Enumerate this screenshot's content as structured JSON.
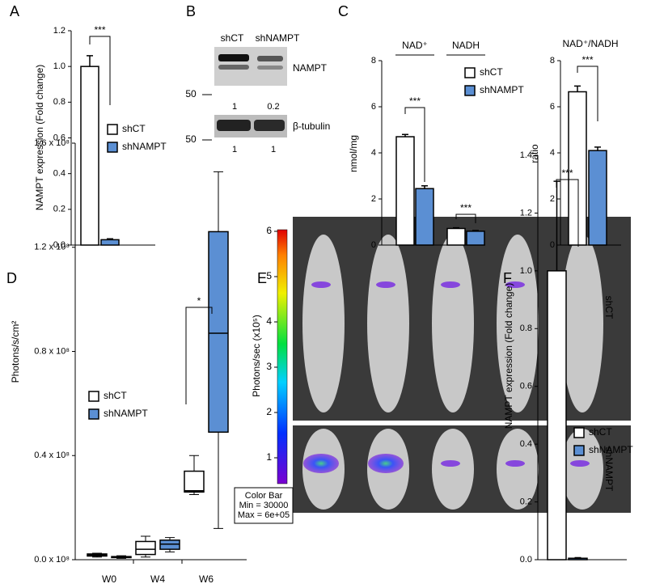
{
  "chart_data": [
    {
      "type": "bar",
      "panel": "A",
      "ylabel": "NAMPT expression (Fold change)",
      "categories": [
        null
      ],
      "series": [
        {
          "name": "shCT",
          "color": "#ffffff",
          "values": [
            1.0
          ],
          "errors": [
            0.06
          ]
        },
        {
          "name": "shNAMPT",
          "color": "#5b8fd3",
          "values": [
            0.03
          ],
          "errors": [
            0.005
          ]
        }
      ],
      "ylim": [
        0,
        1.2
      ],
      "yticks": [
        {
          "value": 0,
          "label": "0.0"
        },
        0.2,
        0.4,
        0.6,
        0.8,
        {
          "value": 1,
          "label": "1.0"
        },
        1.2
      ],
      "annotations": [
        "***"
      ]
    },
    {
      "type": "bar",
      "panel": "C",
      "ylabel": "nmol/mg",
      "categories": [
        "NAD⁺",
        "NADH"
      ],
      "series": [
        {
          "name": "shCT",
          "color": "#ffffff",
          "values": [
            4.7,
            0.72
          ],
          "errors": [
            0.1,
            0.03
          ]
        },
        {
          "name": "shNAMPT",
          "color": "#5b8fd3",
          "values": [
            2.45,
            0.6
          ],
          "errors": [
            0.12,
            0.03
          ]
        }
      ],
      "ylim": [
        0,
        8
      ],
      "yticks": [
        0,
        2,
        4,
        6,
        8
      ],
      "annotations": [
        "***",
        "***"
      ]
    },
    {
      "type": "bar",
      "title": "NAD⁺/NADH",
      "ylabel": "ratio",
      "categories": [
        null
      ],
      "series": [
        {
          "color": "#ffffff",
          "values": [
            6.65
          ],
          "errors": [
            0.25
          ]
        },
        {
          "color": "#5b8fd3",
          "values": [
            4.1
          ],
          "errors": [
            0.15
          ]
        }
      ],
      "ylim": [
        0,
        8
      ],
      "yticks": [
        0,
        2,
        4,
        6,
        8
      ],
      "annotations": [
        "***"
      ]
    },
    {
      "type": "box",
      "panel": "D",
      "ylabel": "Photons/s/cm²",
      "categories": [
        "W0",
        "W4",
        "W6"
      ],
      "series": [
        {
          "name": "shCT",
          "color": "#ffffff",
          "values": [
            {
              "min": 1000000,
              "q1": 1400000,
              "median": 1800000,
              "q3": 2200000,
              "max": 2500000
            },
            {
              "min": 1000000,
              "q1": 2000000,
              "median": 4000000,
              "q3": 7000000,
              "max": 9000000
            },
            {
              "min": 25000000,
              "q1": 26000000,
              "median": 26500000,
              "q3": 34000000,
              "max": 40000000
            }
          ]
        },
        {
          "name": "shNAMPT",
          "color": "#5b8fd3",
          "values": [
            {
              "min": 500000,
              "q1": 800000,
              "median": 1000000,
              "q3": 1200000,
              "max": 1500000
            },
            {
              "min": 3000000,
              "q1": 4000000,
              "median": 6000000,
              "q3": 7500000,
              "max": 8500000
            },
            {
              "min": 12000000,
              "q1": 49000000,
              "median": 87000000,
              "q3": 126000000,
              "max": 149000000
            }
          ]
        }
      ],
      "ylim": [
        0,
        160000000
      ],
      "yticks": [
        {
          "value": 0,
          "label": "0.0 x 10⁸"
        },
        {
          "value": 40000000,
          "label": "0.4 x 10⁸"
        },
        {
          "value": 80000000,
          "label": "0.8 x 10⁸"
        },
        {
          "value": 120000000,
          "label": "1.2 x 10⁸"
        },
        {
          "value": 160000000,
          "label": "1.6 x 10⁸"
        }
      ],
      "annotations": [
        "*"
      ]
    },
    {
      "type": "bar",
      "panel": "F",
      "ylabel": "NAMPT expression (Fold change)",
      "categories": [
        null
      ],
      "series": [
        {
          "name": "shCT",
          "color": "#ffffff",
          "values": [
            1.0
          ],
          "errors": [
            0.31
          ]
        },
        {
          "name": "shNAMPT",
          "color": "#5b8fd3",
          "values": [
            0.005
          ],
          "errors": [
            0.002
          ]
        }
      ],
      "ylim": [
        0,
        1.4
      ],
      "yticks": [
        {
          "value": 0,
          "label": "0.0"
        },
        0.2,
        0.4,
        0.6,
        0.8,
        {
          "value": 1,
          "label": "1.0"
        },
        1.2,
        1.4
      ],
      "annotations": [
        "***"
      ]
    }
  ],
  "blot": {
    "panel": "B",
    "lanes": [
      "shCT",
      "shNAMPT"
    ],
    "bands": [
      "NAMPT",
      "β-tubulin"
    ],
    "markers": [
      "50",
      "50"
    ],
    "quant_nampt": [
      "1",
      "0.2"
    ],
    "quant_tubulin": [
      "1",
      "1"
    ]
  },
  "imaging": {
    "panel": "E",
    "colorbar_label": "Photons/sec (x10⁵)",
    "colorbar_ticks": [
      1,
      2,
      3,
      4,
      5,
      6
    ],
    "rows": [
      "shCT",
      "shNAMPT"
    ],
    "legend": [
      "Color Bar",
      "Min = 30000",
      "Max = 6e+05"
    ]
  }
}
